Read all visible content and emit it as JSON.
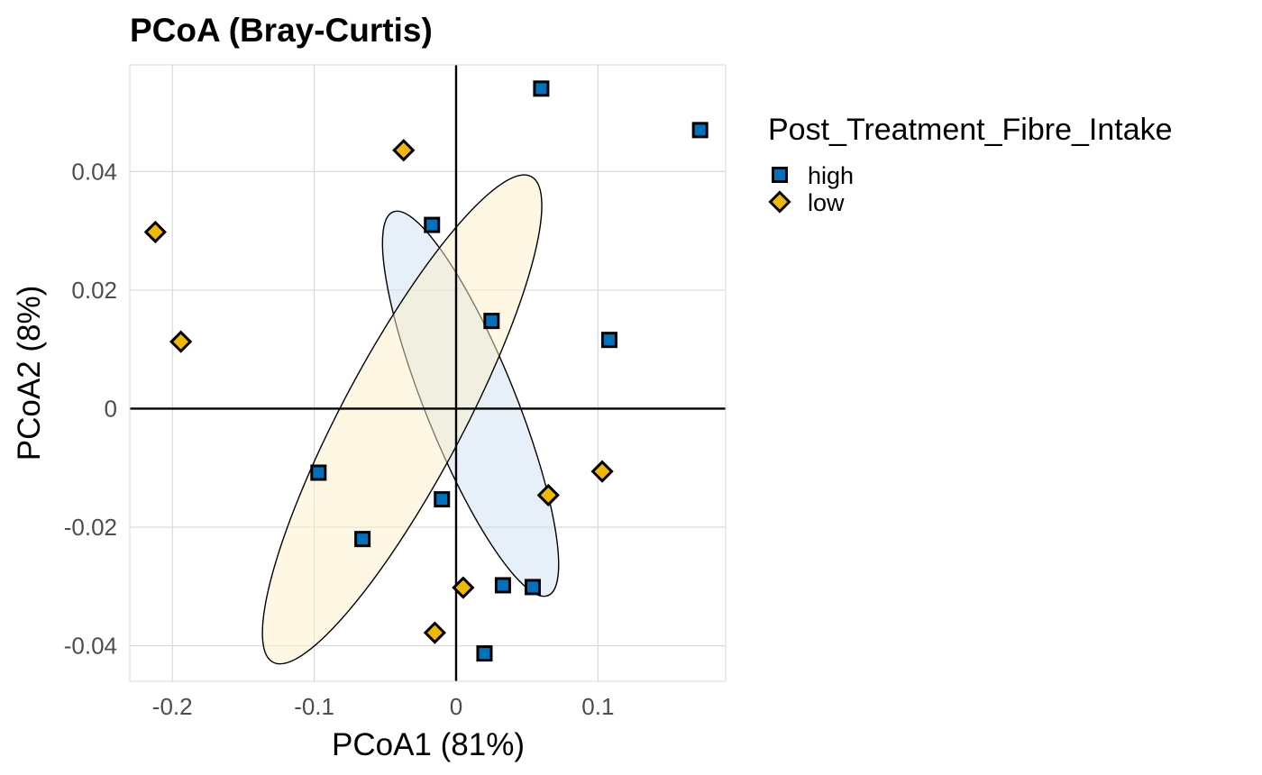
{
  "chart_data": {
    "type": "scatter",
    "title": "PCoA (Bray-Curtis)",
    "xlabel": "PCoA1 (81%)",
    "ylabel": "PCoA2 (8%)",
    "xlim": [
      -0.23,
      0.19
    ],
    "ylim": [
      -0.046,
      0.058
    ],
    "xticks": [
      -0.2,
      -0.1,
      0,
      0.1
    ],
    "xtick_labels": [
      "-0.2",
      "-0.1",
      "0",
      "0.1"
    ],
    "yticks": [
      -0.04,
      -0.02,
      0,
      0.02,
      0.04
    ],
    "ytick_labels": [
      "-0.04",
      "-0.02",
      "0",
      "0.02",
      "0.04"
    ],
    "grid": true,
    "reference_lines": {
      "x": 0,
      "y": 0
    },
    "legend": {
      "title": "Post_Treatment_Fibre_Intake",
      "placement": "right"
    },
    "series": [
      {
        "name": "high",
        "marker": "square",
        "color": "#0072BD",
        "ellipse_fill": "#CFE2F3",
        "points": [
          {
            "x": 0.06,
            "y": 0.054
          },
          {
            "x": 0.172,
            "y": 0.047
          },
          {
            "x": -0.017,
            "y": 0.031
          },
          {
            "x": 0.025,
            "y": 0.0148
          },
          {
            "x": 0.108,
            "y": 0.0116
          },
          {
            "x": -0.097,
            "y": -0.0108
          },
          {
            "x": -0.01,
            "y": -0.0153
          },
          {
            "x": -0.066,
            "y": -0.022
          },
          {
            "x": 0.033,
            "y": -0.0298
          },
          {
            "x": 0.054,
            "y": -0.0301
          },
          {
            "x": 0.02,
            "y": -0.0413
          }
        ],
        "ellipse": {
          "cx": 0.0102,
          "cy": 0.00083,
          "rx": 0.0318,
          "ry": 0.0349,
          "angle_deg": -22
        }
      },
      {
        "name": "low",
        "marker": "diamond",
        "color": "#F0B800",
        "ellipse_fill": "#FBEFC8",
        "points": [
          {
            "x": -0.037,
            "y": 0.0436
          },
          {
            "x": -0.212,
            "y": 0.0298
          },
          {
            "x": -0.194,
            "y": 0.0113
          },
          {
            "x": 0.103,
            "y": -0.0106
          },
          {
            "x": 0.065,
            "y": -0.0146
          },
          {
            "x": 0.005,
            "y": -0.0302
          },
          {
            "x": -0.015,
            "y": -0.0378
          }
        ],
        "ellipse": {
          "cx": -0.03806,
          "cy": -0.00181,
          "rx": 0.0425,
          "ry": 0.0464,
          "angle_deg": 28
        }
      }
    ]
  }
}
